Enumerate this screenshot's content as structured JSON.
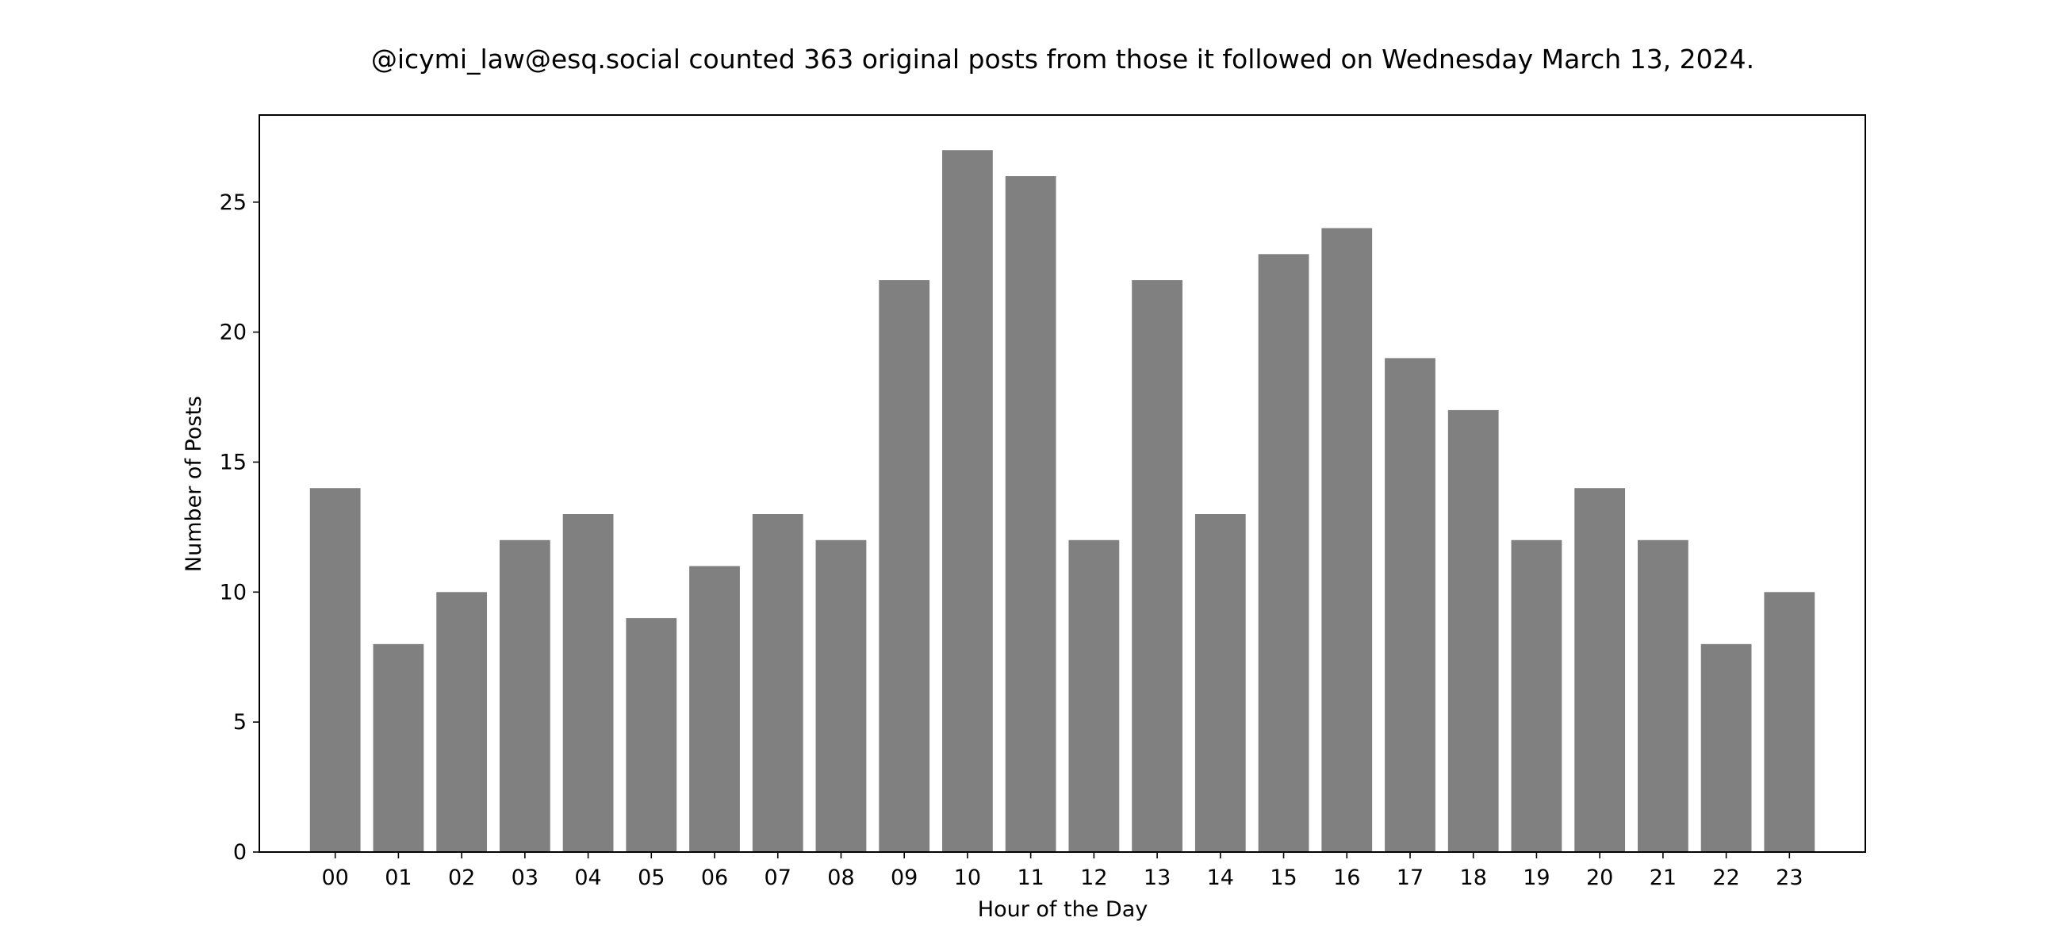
{
  "chart_data": {
    "type": "bar",
    "title": "@icymi_law@esq.social counted 363 original posts from those it followed on Wednesday March 13, 2024.",
    "xlabel": "Hour of the Day",
    "ylabel": "Number of Posts",
    "categories": [
      "00",
      "01",
      "02",
      "03",
      "04",
      "05",
      "06",
      "07",
      "08",
      "09",
      "10",
      "11",
      "12",
      "13",
      "14",
      "15",
      "16",
      "17",
      "18",
      "19",
      "20",
      "21",
      "22",
      "23"
    ],
    "values": [
      14,
      8,
      10,
      12,
      13,
      9,
      11,
      13,
      12,
      22,
      27,
      26,
      12,
      22,
      13,
      23,
      24,
      19,
      17,
      12,
      14,
      12,
      8,
      10
    ],
    "ylim": [
      0,
      28.35
    ],
    "yticks": [
      0,
      5,
      10,
      15,
      20,
      25
    ],
    "grid": false,
    "bar_color": "#808080",
    "axis_color": "#000000"
  }
}
